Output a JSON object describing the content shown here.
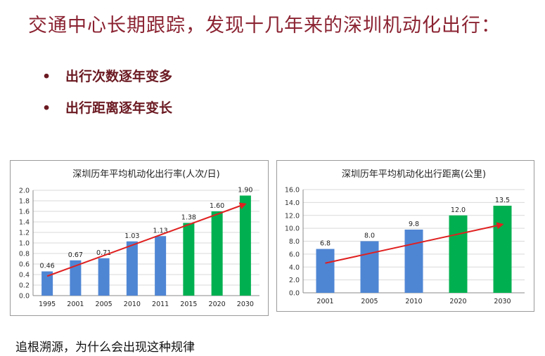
{
  "slide": {
    "title": "交通中心长期跟踪，发现十几年来的深圳机动化出行：",
    "bullets": [
      {
        "marker": "•",
        "text": "出行次数逐年变多"
      },
      {
        "marker": "•",
        "text": "出行距离逐年变长"
      }
    ],
    "footer": "追根溯源，为什么会出现这种规律"
  },
  "chart_data": [
    {
      "type": "bar",
      "title": "深圳历年平均机动化出行率(人次/日)",
      "categories": [
        "1995",
        "2001",
        "2005",
        "2010",
        "2011",
        "2015",
        "2020",
        "2030"
      ],
      "values": [
        0.46,
        0.67,
        0.71,
        1.03,
        1.13,
        1.38,
        1.6,
        1.9
      ],
      "value_labels": [
        "0.46",
        "0.67",
        "0.71",
        "1.03",
        "1.13",
        "1.38",
        "1.60",
        "1.90"
      ],
      "bar_colors": [
        "#4F86D4",
        "#4F86D4",
        "#4F86D4",
        "#4F86D4",
        "#4F86D4",
        "#00B050",
        "#00B050",
        "#00B050"
      ],
      "ylim": [
        0,
        2.0
      ],
      "yticks": [
        "0.0",
        "0.2",
        "0.4",
        "0.6",
        "0.8",
        "1.0",
        "1.2",
        "1.4",
        "1.6",
        "1.8",
        "2.0"
      ],
      "grid": true,
      "trend_arrow": {
        "from": [
          0,
          0.37
        ],
        "to": [
          7,
          1.74
        ],
        "color": "#E02020"
      }
    },
    {
      "type": "bar",
      "title": "深圳历年平均机动化出行距离(公里)",
      "categories": [
        "2001",
        "2005",
        "2010",
        "2020",
        "2030"
      ],
      "values": [
        6.8,
        8.0,
        9.8,
        12.0,
        13.5
      ],
      "value_labels": [
        "6.8",
        "8.0",
        "9.8",
        "12.0",
        "13.5"
      ],
      "bar_colors": [
        "#4F86D4",
        "#4F86D4",
        "#4F86D4",
        "#00B050",
        "#00B050"
      ],
      "ylim": [
        0,
        16.0
      ],
      "yticks": [
        "0.0",
        "2.0",
        "4.0",
        "6.0",
        "8.0",
        "10.0",
        "12.0",
        "14.0",
        "16.0"
      ],
      "grid": true,
      "trend_arrow": {
        "from": [
          0,
          4.6
        ],
        "to": [
          4,
          10.6
        ],
        "color": "#E02020"
      }
    }
  ]
}
